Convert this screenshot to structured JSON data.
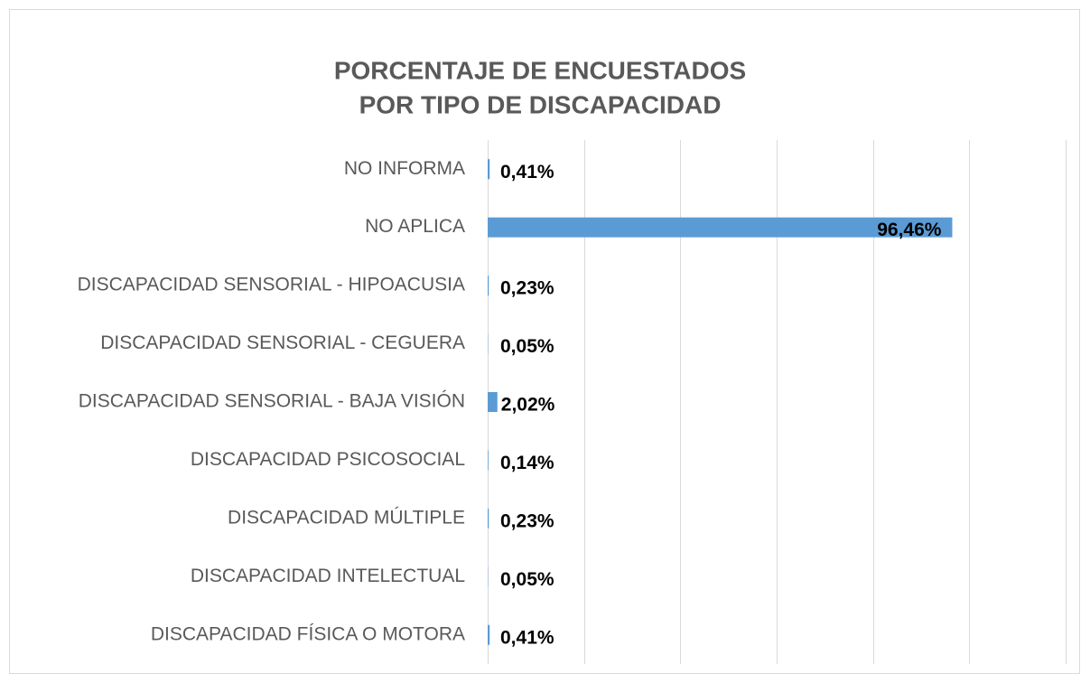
{
  "chart_data": {
    "type": "barh",
    "title": [
      "PORCENTAJE DE ENCUESTADOS",
      "POR TIPO DE DISCAPACIDAD"
    ],
    "categories": [
      "NO INFORMA",
      "NO APLICA",
      "DISCAPACIDAD SENSORIAL - HIPOACUSIA",
      "DISCAPACIDAD SENSORIAL - CEGUERA",
      "DISCAPACIDAD SENSORIAL - BAJA VISIÓN",
      "DISCAPACIDAD PSICOSOCIAL",
      "DISCAPACIDAD MÚLTIPLE",
      "DISCAPACIDAD INTELECTUAL",
      "DISCAPACIDAD FÍSICA O MOTORA"
    ],
    "values": [
      0.41,
      96.46,
      0.23,
      0.05,
      2.02,
      0.14,
      0.23,
      0.05,
      0.41
    ],
    "value_labels": [
      "0,41%",
      "96,46%",
      "0,23%",
      "0,05%",
      "2,02%",
      "0,14%",
      "0,23%",
      "0,05%",
      "0,41%"
    ],
    "color": "#5b9bd5",
    "xlim": [
      0,
      120
    ],
    "xticks": [
      0,
      20,
      40,
      60,
      80,
      100,
      120
    ],
    "grid": true
  }
}
